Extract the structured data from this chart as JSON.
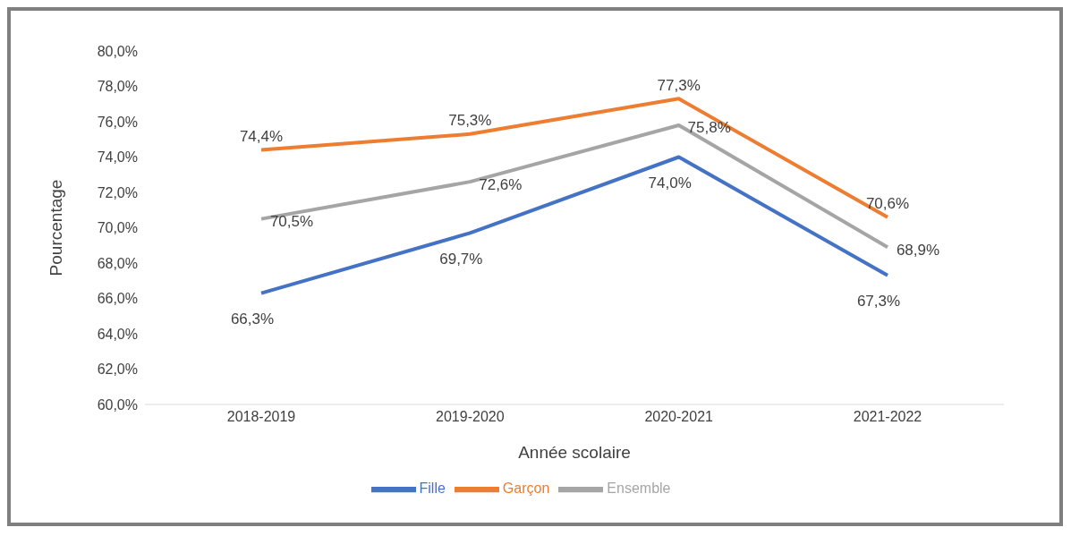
{
  "chart_data": {
    "type": "line",
    "xlabel": "Année scolaire",
    "ylabel": "Pourcentage",
    "categories": [
      "2018-2019",
      "2019-2020",
      "2020-2021",
      "2021-2022"
    ],
    "series": [
      {
        "name": "Fille",
        "color": "#4472c4",
        "values": [
          66.3,
          69.7,
          74.0,
          67.3
        ],
        "value_labels": [
          "66,3%",
          "69,7%",
          "74,0%",
          "67,3%"
        ]
      },
      {
        "name": "Garçon",
        "color": "#ed7d31",
        "values": [
          74.4,
          75.3,
          77.3,
          70.6
        ],
        "value_labels": [
          "74,4%",
          "75,3%",
          "77,3%",
          "70,6%"
        ]
      },
      {
        "name": "Ensemble",
        "color": "#a5a5a5",
        "values": [
          70.5,
          72.6,
          75.8,
          68.9
        ],
        "value_labels": [
          "70,5%",
          "72,6%",
          "75,8%",
          "68,9%"
        ]
      }
    ],
    "ylim": [
      60,
      80
    ],
    "yticks": [
      {
        "value": 60,
        "label": "60,0%"
      },
      {
        "value": 62,
        "label": "62,0%"
      },
      {
        "value": 64,
        "label": "64,0%"
      },
      {
        "value": 66,
        "label": "66,0%"
      },
      {
        "value": 68,
        "label": "68,0%"
      },
      {
        "value": 70,
        "label": "70,0%"
      },
      {
        "value": 72,
        "label": "72,0%"
      },
      {
        "value": 74,
        "label": "74,0%"
      },
      {
        "value": 76,
        "label": "76,0%"
      },
      {
        "value": 78,
        "label": "78,0%"
      },
      {
        "value": 80,
        "label": "80,0%"
      }
    ],
    "grid": false,
    "legend": "bottom",
    "marker": "none",
    "line_style": "solid"
  }
}
